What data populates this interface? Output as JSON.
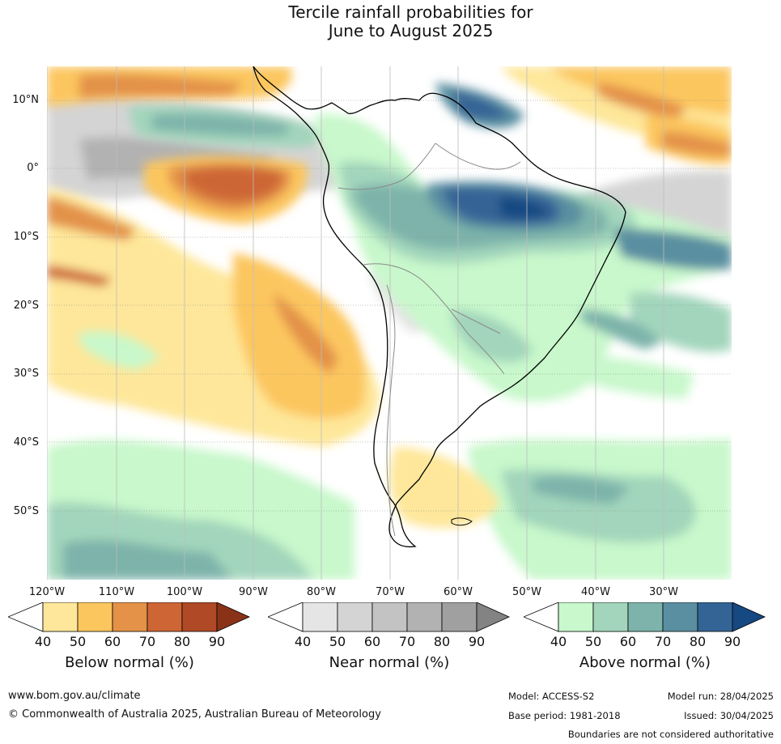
{
  "title": {
    "line1": "Tercile rainfall probabilities for",
    "line2": "June to August 2025"
  },
  "axes": {
    "lat_labels": [
      "10°N",
      "0°",
      "10°S",
      "20°S",
      "30°S",
      "40°S",
      "50°S"
    ],
    "lon_labels": [
      "120°W",
      "110°W",
      "100°W",
      "90°W",
      "80°W",
      "70°W",
      "60°W",
      "50°W",
      "40°W",
      "30°W"
    ]
  },
  "legends": [
    {
      "title": "Below normal (%)",
      "ticks": [
        "40",
        "50",
        "60",
        "70",
        "80",
        "90"
      ],
      "colors": [
        "#ffffff",
        "#fee79a",
        "#fcc65e",
        "#e39248",
        "#cd6634",
        "#b04a26",
        "#8a3218"
      ]
    },
    {
      "title": "Near normal (%)",
      "ticks": [
        "40",
        "50",
        "60",
        "70",
        "80",
        "90"
      ],
      "colors": [
        "#ffffff",
        "#e5e5e5",
        "#d4d4d4",
        "#c3c3c3",
        "#b2b2b2",
        "#a0a0a0",
        "#838383"
      ]
    },
    {
      "title": "Above normal (%)",
      "ticks": [
        "40",
        "50",
        "60",
        "70",
        "80",
        "90"
      ],
      "colors": [
        "#ffffff",
        "#c8f8cb",
        "#a2d5bb",
        "#7db3aa",
        "#5a8fa1",
        "#346496",
        "#164882"
      ]
    }
  ],
  "footer": {
    "url": "www.bom.gov.au/climate",
    "copyright": "© Commonwealth of Australia 2025, Australian Bureau of Meteorology",
    "model": "Model: ACCESS-S2",
    "base_period": "Base period: 1981-2018",
    "model_run": "Model run: 28/04/2025",
    "issued": "Issued: 30/04/2025",
    "disclaimer": "Boundaries are not considered authoritative"
  }
}
